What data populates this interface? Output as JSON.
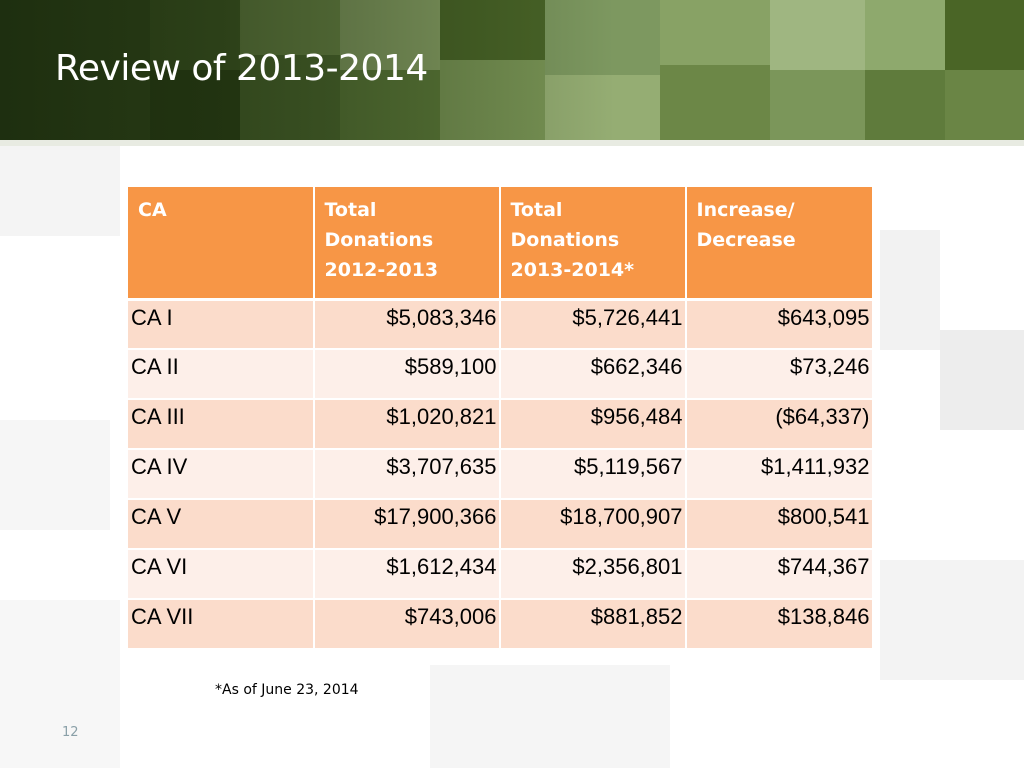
{
  "slide": {
    "title": "Review of 2013-2014",
    "page_number": "12",
    "footnote": "*As of June 23, 2014"
  },
  "table": {
    "headers": [
      [
        "CA"
      ],
      [
        "Total",
        "Donations",
        "2012-2013"
      ],
      [
        "Total",
        "Donations",
        "2013-2014*"
      ],
      [
        "Increase/",
        "Decrease"
      ]
    ],
    "rows": [
      [
        "CA I",
        "$5,083,346",
        "$5,726,441",
        "$643,095"
      ],
      [
        "CA II",
        "$589,100",
        "$662,346",
        "$73,246"
      ],
      [
        "CA III",
        "$1,020,821",
        "$956,484",
        "($64,337)"
      ],
      [
        "CA IV",
        "$3,707,635",
        "$5,119,567",
        "$1,411,932"
      ],
      [
        "CA V",
        "$17,900,366",
        "$18,700,907",
        "$800,541"
      ],
      [
        "CA VI",
        "$1,612,434",
        "$2,356,801",
        "$744,367"
      ],
      [
        "CA VII",
        "$743,006",
        "$881,852",
        "$138,846"
      ]
    ]
  },
  "colors": {
    "header_band": "#4d6a2c",
    "table_header": "#f79646",
    "row_odd": "#fbdccb",
    "row_even": "#fdefe9"
  }
}
